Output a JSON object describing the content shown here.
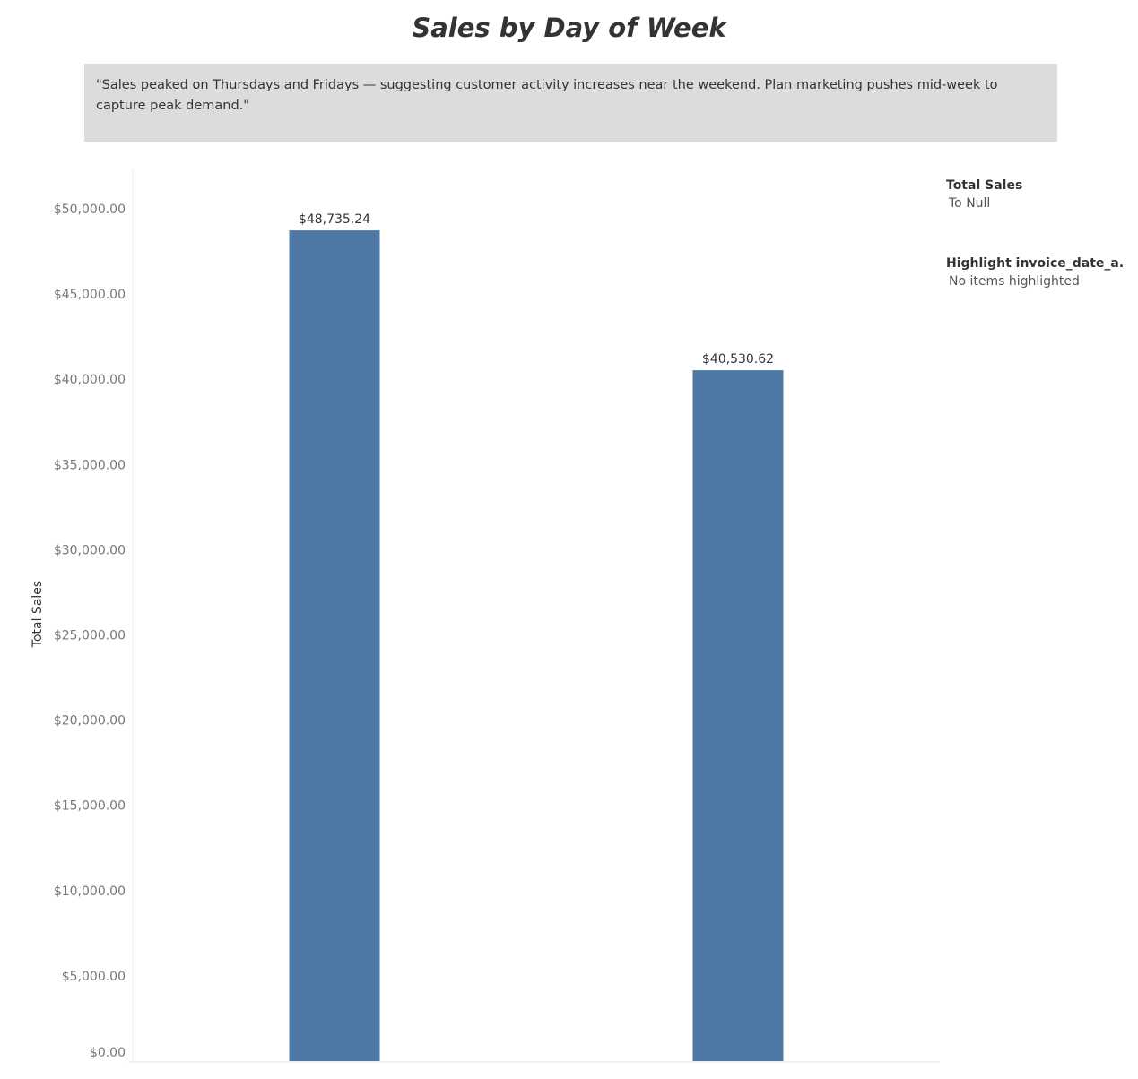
{
  "annotation": "\"Sales peaked on Thursdays and Fridays — suggesting customer activity increases near the weekend. Plan marketing pushes mid-week to capture peak demand.\"",
  "legends": [
    {
      "title": "Total Sales",
      "value": "To Null"
    },
    {
      "title": "Highlight invoice_date_a..",
      "value": "No items highlighted"
    }
  ],
  "chart_data": {
    "type": "bar",
    "title": "Sales by Day of Week",
    "ylabel": "Total Sales",
    "xlabel": "",
    "ylim": [
      0,
      52500
    ],
    "yticks": [
      {
        "value": 0,
        "label": "$0.00"
      },
      {
        "value": 5000,
        "label": "$5,000.00"
      },
      {
        "value": 10000,
        "label": "$10,000.00"
      },
      {
        "value": 15000,
        "label": "$15,000.00"
      },
      {
        "value": 20000,
        "label": "$20,000.00"
      },
      {
        "value": 25000,
        "label": "$25,000.00"
      },
      {
        "value": 30000,
        "label": "$30,000.00"
      },
      {
        "value": 35000,
        "label": "$35,000.00"
      },
      {
        "value": 40000,
        "label": "$40,000.00"
      },
      {
        "value": 45000,
        "label": "$45,000.00"
      },
      {
        "value": 50000,
        "label": "$50,000.00"
      }
    ],
    "values": [
      48735.24,
      40530.62
    ],
    "value_labels": [
      "$48,735.24",
      "$40,530.62"
    ],
    "bar_color": "#4e79a7",
    "grid": false
  }
}
